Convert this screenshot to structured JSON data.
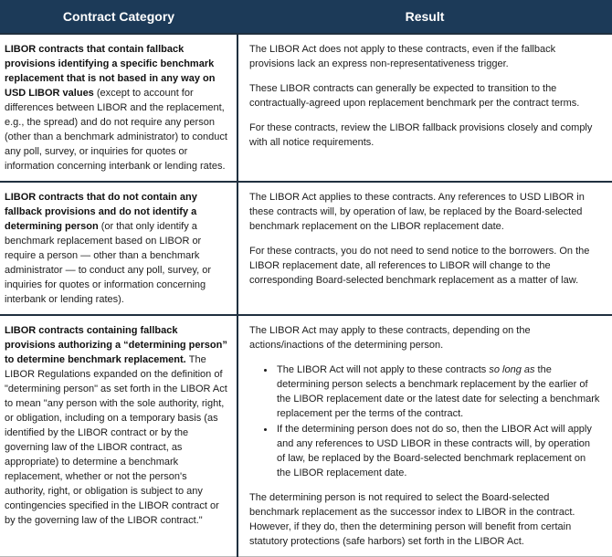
{
  "header": {
    "col1": "Contract Category",
    "col2": "Result"
  },
  "colors": {
    "header_bg": "#1c3a58",
    "header_text": "#ffffff",
    "divider": "#20303f",
    "body_text": "#1c1c1c"
  },
  "rows": [
    {
      "category": {
        "bold": "LIBOR contracts that contain fallback provisions identifying a specific benchmark replacement that is not based in any way on USD LIBOR values ",
        "rest": "(except to account for differences between LIBOR and the replacement, e.g., the spread) and do not require any person (other than a benchmark administrator) to conduct any poll, survey, or inquiries for quotes or information concerning interbank or lending rates."
      },
      "result": {
        "paragraphs": [
          "The LIBOR Act does not apply to these contracts, even if the fallback provisions lack an express non-representativeness trigger.",
          "These LIBOR contracts can generally be expected to transition to the contractually-agreed upon replacement benchmark per the contract terms.",
          "For these contracts, review the LIBOR fallback provisions closely and comply with all notice requirements."
        ]
      }
    },
    {
      "category": {
        "bold": "LIBOR contracts that do not contain any fallback provisions and do not identify a determining person ",
        "rest": "(or that only identify a benchmark replacement based on LIBOR or require a person — other than a benchmark administrator — to conduct any poll, survey, or inquiries for quotes or information concerning interbank or lending rates)."
      },
      "result": {
        "paragraphs": [
          "The LIBOR Act applies to these contracts. Any references to USD LIBOR in these contracts will, by operation of law, be replaced by the Board-selected benchmark replacement on the LIBOR replacement date.",
          "For these contracts, you do not need to send notice to the borrowers. On the LIBOR replacement date, all references to LIBOR will change to the corresponding Board-selected benchmark replacement as a matter of law."
        ]
      }
    },
    {
      "category": {
        "bold": "LIBOR contracts containing fallback provisions authorizing a “determining person” to determine benchmark replacement. ",
        "rest": "The LIBOR Regulations expanded on the definition of \"determining person\" as set forth in the LIBOR Act to mean \"any person with the sole authority, right, or obligation, including on a temporary basis (as identified by the LIBOR contract or by the governing law of the LIBOR contract, as appropriate) to determine a benchmark replacement, whether or not the person's authority, right, or obligation is subject to any contingencies specified in the LIBOR contract or by the governing law of the LIBOR contract.\""
      },
      "result": {
        "intro": "The LIBOR Act may apply to these contracts, depending on the actions/inactions of the determining person.",
        "bullet1": {
          "pre": "The LIBOR Act will not apply to these contracts ",
          "italic": "so long as",
          "post": " the determining person selects a benchmark replacement by the earlier of the LIBOR replacement date or the latest date for selecting a benchmark replacement per the terms of the contract."
        },
        "bullet2": "If the determining person does not do so, then the LIBOR Act will apply and any references to USD LIBOR in these contracts will, by operation of law, be replaced by the Board-selected benchmark replacement on the LIBOR replacement date.",
        "outro": "The determining person is not required to select the Board-selected benchmark replacement as the successor index to LIBOR in the contract. However, if they do, then the determining person will benefit from certain statutory protections (safe harbors) set forth in the LIBOR Act."
      }
    }
  ]
}
